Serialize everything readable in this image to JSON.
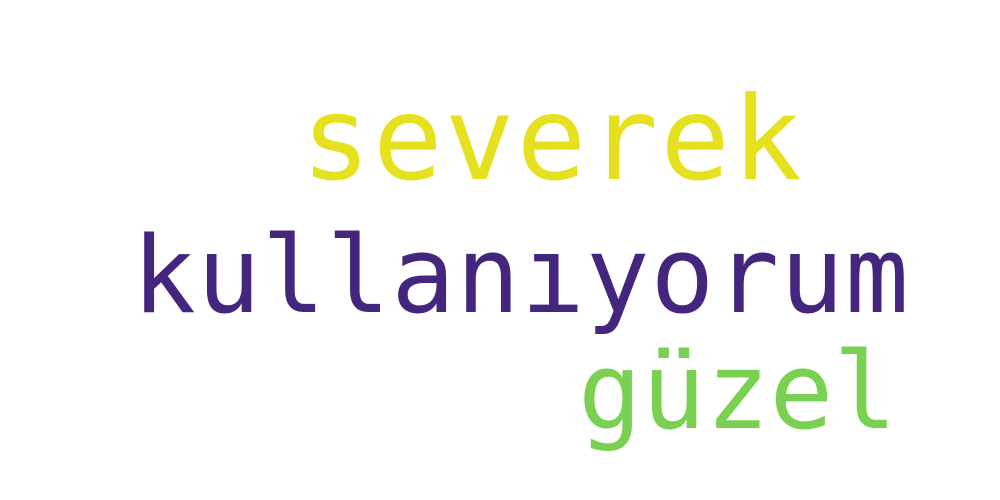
{
  "words": [
    {
      "text": "severek",
      "color": "#e6e11e"
    },
    {
      "text": "kullanıyorum",
      "color": "#44267e"
    },
    {
      "text": "güzel",
      "color": "#7ad151"
    }
  ],
  "background": "#ffffff"
}
